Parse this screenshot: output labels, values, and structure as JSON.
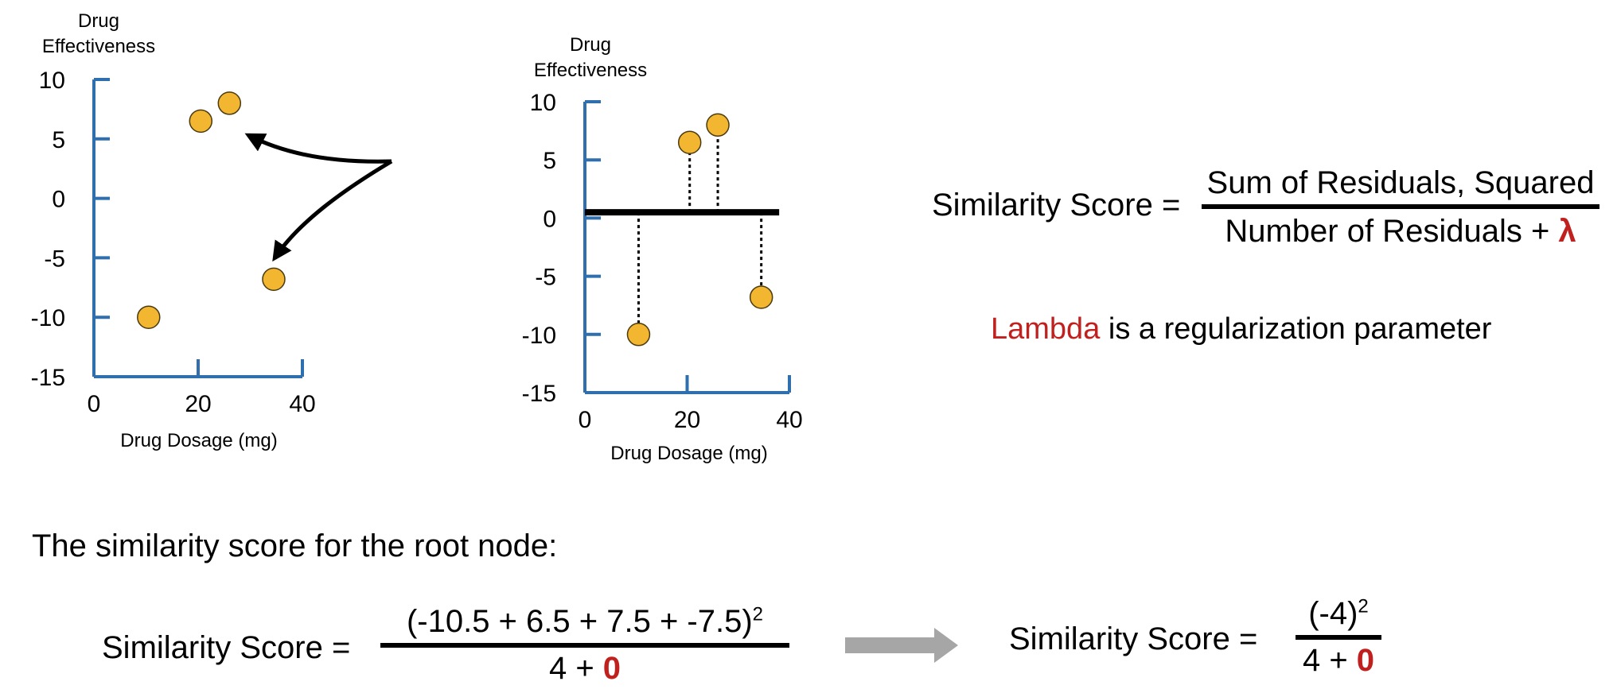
{
  "colors": {
    "axis": "#2f6fad",
    "point_fill": "#f2b631",
    "point_stroke": "#4a3a10",
    "accent_red": "#c0211f",
    "arrow_gray": "#a6a6a6"
  },
  "chart_data": [
    {
      "type": "scatter",
      "title": "",
      "ylabel_line1": "Drug",
      "ylabel_line2": "Effectiveness",
      "xlabel": "Drug Dosage (mg)",
      "xlim": [
        0,
        40
      ],
      "ylim": [
        -15,
        10
      ],
      "xticks": [
        "0",
        "20",
        "40"
      ],
      "xtick_values": [
        0,
        20,
        40
      ],
      "yticks": [
        "10",
        "5",
        "0",
        "-5",
        "-10",
        "-15"
      ],
      "ytick_values": [
        10,
        5,
        0,
        -5,
        -10,
        -15
      ],
      "points": [
        {
          "x": 10.5,
          "y": -10
        },
        {
          "x": 20.5,
          "y": 6.5
        },
        {
          "x": 26,
          "y": 8
        },
        {
          "x": 34.5,
          "y": -6.8
        }
      ],
      "annotation": "curved arrows pointing to points"
    },
    {
      "type": "scatter",
      "title": "",
      "ylabel_line1": "Drug",
      "ylabel_line2": "Effectiveness",
      "xlabel": "Drug Dosage (mg)",
      "xlim": [
        0,
        40
      ],
      "ylim": [
        -15,
        10
      ],
      "xticks": [
        "0",
        "20",
        "40"
      ],
      "xtick_values": [
        0,
        20,
        40
      ],
      "yticks": [
        "10",
        "5",
        "0",
        "-5",
        "-10",
        "-15"
      ],
      "ytick_values": [
        10,
        5,
        0,
        -5,
        -10,
        -15
      ],
      "prediction_line_y": 0.5,
      "prediction_line_x": [
        0,
        38
      ],
      "points": [
        {
          "x": 10.5,
          "y": -10
        },
        {
          "x": 20.5,
          "y": 6.5
        },
        {
          "x": 26,
          "y": 8
        },
        {
          "x": 34.5,
          "y": -6.8
        }
      ],
      "residuals": "dotted lines from each point to prediction line"
    }
  ],
  "formula_main": {
    "lhs": "Similarity Score =",
    "numerator": "Sum of Residuals, Squared",
    "denominator_text": "Number of Residuals + ",
    "denominator_symbol": "λ"
  },
  "lambda_note": {
    "word": "Lambda",
    "rest": " is a regularization parameter"
  },
  "root_heading": "The similarity score for the root node:",
  "formula_root": {
    "lhs": "Similarity Score =",
    "numerator": "(-10.5 + 6.5 + 7.5 + -7.5)",
    "numerator_exp": "2",
    "denominator_text": "4 + ",
    "denominator_red": "0"
  },
  "formula_result": {
    "lhs": "Similarity Score =",
    "numerator": "(-4)",
    "numerator_exp": "2",
    "denominator_text": "4 + ",
    "denominator_red": "0"
  }
}
